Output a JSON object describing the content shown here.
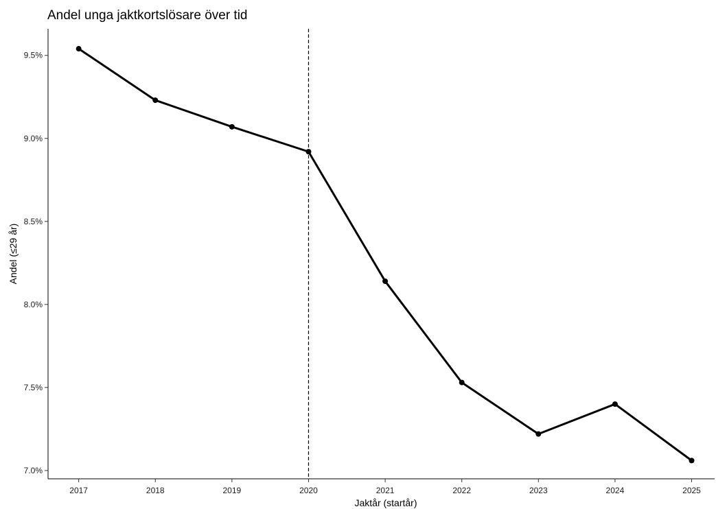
{
  "chart_data": {
    "type": "line",
    "title": "Andel unga jaktkortslösare över tid",
    "xlabel": "Jaktår (startår)",
    "ylabel": "Andel (≤29 år)",
    "x": [
      2017,
      2018,
      2019,
      2020,
      2021,
      2022,
      2023,
      2024,
      2025
    ],
    "x_tick_labels": [
      "2017",
      "2018",
      "2019",
      "2020",
      "2021",
      "2022",
      "2023",
      "2024",
      "2025"
    ],
    "series": [
      {
        "values": [
          9.54,
          9.23,
          9.07,
          8.92,
          8.14,
          7.53,
          7.22,
          7.4,
          7.06
        ],
        "color": "#000000",
        "marker": "circle"
      }
    ],
    "y_ticks": [
      7.0,
      7.5,
      8.0,
      8.5,
      9.0,
      9.5
    ],
    "y_tick_labels": [
      "7.0%",
      "7.5%",
      "8.0%",
      "8.5%",
      "9.0%",
      "9.5%"
    ],
    "ylim": [
      6.95,
      9.66
    ],
    "xlim": [
      2016.6,
      2025.3
    ],
    "reference_line": {
      "x": 2020,
      "style": "dashed",
      "color": "#000000"
    },
    "grid": false,
    "legend": false
  }
}
